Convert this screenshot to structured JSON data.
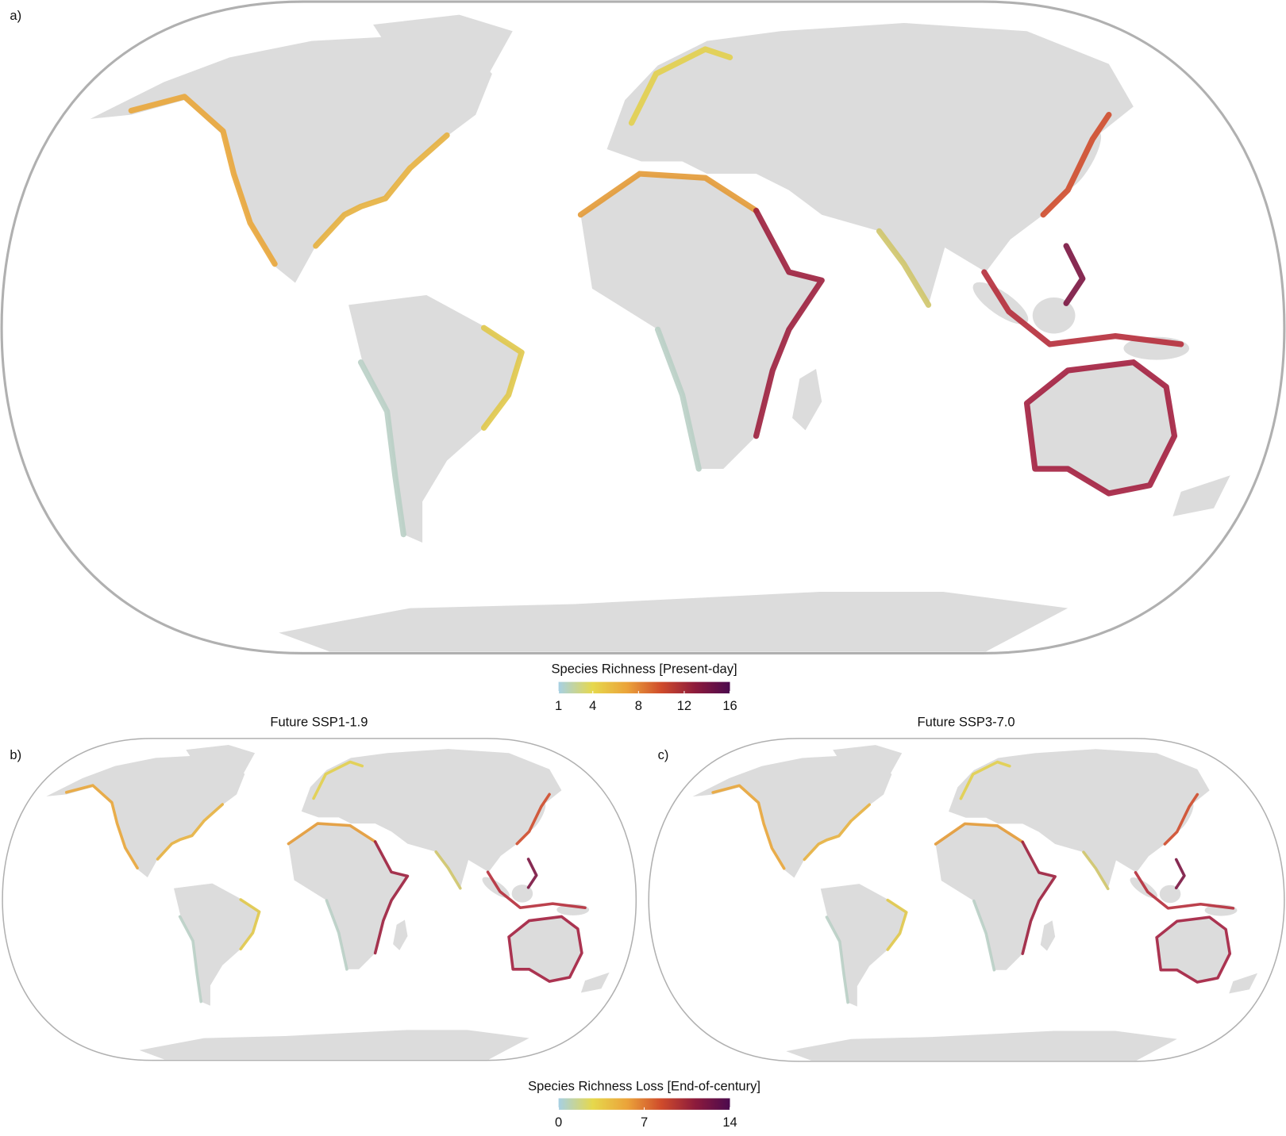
{
  "panels": [
    {
      "label": "a)"
    },
    {
      "label": "b)",
      "title": "Future SSP1-1.9"
    },
    {
      "label": "c)",
      "title": "Future SSP3-7.0"
    }
  ],
  "colorbars": [
    {
      "title": "Species Richness [Present-day]",
      "lim": [
        1,
        16
      ],
      "ticks": [
        1,
        4,
        8,
        12,
        16
      ],
      "colors": [
        "#a6d0e4",
        "#e6d84c",
        "#eba33a",
        "#cf4b2b",
        "#8c1a3c",
        "#4b0a4e"
      ]
    },
    {
      "title": "Species Richness Loss [End-of-century]",
      "lim": [
        0,
        14
      ],
      "ticks": [
        0,
        7,
        14
      ],
      "colors": [
        "#a6d0e4",
        "#e6d84c",
        "#eba33a",
        "#cf4b2b",
        "#8c1a3c",
        "#4b0a4e"
      ]
    }
  ]
}
